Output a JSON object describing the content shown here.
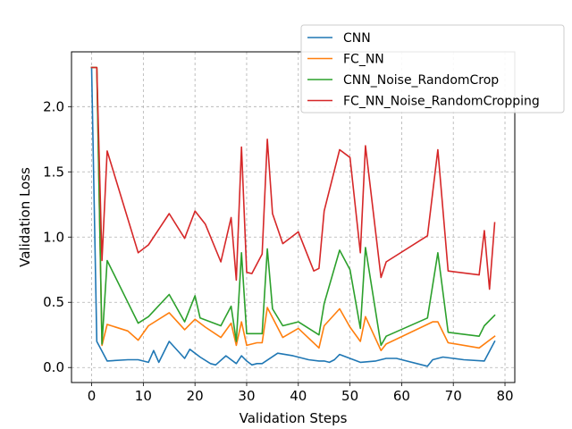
{
  "chart_data": {
    "type": "line",
    "title": "",
    "xlabel": "Validation Steps",
    "ylabel": "Validation Loss",
    "xlim": [
      -3.9,
      81.9
    ],
    "ylim": [
      -0.115,
      2.42
    ],
    "xticks": [
      0,
      10,
      20,
      30,
      40,
      50,
      60,
      70,
      80
    ],
    "yticks": [
      0.0,
      0.5,
      1.0,
      1.5,
      2.0
    ],
    "xtick_labels": [
      "0",
      "10",
      "20",
      "30",
      "40",
      "50",
      "60",
      "70",
      "80"
    ],
    "ytick_labels": [
      "0.0",
      "0.5",
      "1.0",
      "1.5",
      "2.0"
    ],
    "grid": true,
    "grid_style": "dashed",
    "legend_position": "upper-right, outside",
    "series": [
      {
        "name": "CNN",
        "color": "#1f77b4",
        "x": [
          0,
          1,
          3,
          7,
          9,
          11,
          12,
          13,
          15,
          18,
          19,
          21,
          23,
          24,
          26,
          27,
          28,
          29,
          30,
          31,
          32,
          33,
          36,
          39,
          42,
          44,
          45,
          46,
          47,
          48,
          50,
          52,
          55,
          57,
          59,
          65,
          66,
          68,
          70,
          72,
          76,
          78
        ],
        "y": [
          2.3,
          0.2,
          0.05,
          0.06,
          0.06,
          0.04,
          0.13,
          0.04,
          0.2,
          0.07,
          0.14,
          0.08,
          0.03,
          0.02,
          0.09,
          0.06,
          0.03,
          0.09,
          0.05,
          0.02,
          0.03,
          0.03,
          0.11,
          0.09,
          0.06,
          0.05,
          0.05,
          0.04,
          0.06,
          0.1,
          0.07,
          0.04,
          0.05,
          0.07,
          0.07,
          0.01,
          0.06,
          0.08,
          0.07,
          0.06,
          0.05,
          0.2
        ]
      },
      {
        "name": "FC_NN",
        "color": "#ff7f0e",
        "x": [
          0,
          1,
          2,
          3,
          7,
          9,
          11,
          15,
          18,
          20,
          22,
          25,
          27,
          28,
          29,
          30,
          32,
          33,
          34,
          37,
          40,
          44,
          45,
          48,
          50,
          52,
          53,
          56,
          57,
          66,
          67,
          69,
          75,
          78
        ],
        "y": [
          2.3,
          2.3,
          0.17,
          0.33,
          0.28,
          0.21,
          0.32,
          0.42,
          0.29,
          0.37,
          0.31,
          0.23,
          0.34,
          0.17,
          0.35,
          0.17,
          0.19,
          0.19,
          0.46,
          0.23,
          0.3,
          0.15,
          0.32,
          0.45,
          0.31,
          0.2,
          0.39,
          0.13,
          0.18,
          0.35,
          0.35,
          0.19,
          0.15,
          0.24
        ]
      },
      {
        "name": "CNN_Noise_RandomCrop",
        "color": "#2ca02c",
        "x": [
          0,
          1,
          2,
          3,
          7,
          9,
          11,
          15,
          18,
          20,
          21,
          25,
          27,
          28,
          29,
          30,
          33,
          34,
          35,
          37,
          40,
          44,
          45,
          48,
          50,
          52,
          53,
          56,
          57,
          65,
          67,
          69,
          75,
          76,
          78
        ],
        "y": [
          2.3,
          2.3,
          0.18,
          0.82,
          0.5,
          0.34,
          0.39,
          0.56,
          0.35,
          0.55,
          0.38,
          0.32,
          0.47,
          0.2,
          0.88,
          0.26,
          0.26,
          0.91,
          0.45,
          0.32,
          0.35,
          0.25,
          0.49,
          0.9,
          0.75,
          0.3,
          0.92,
          0.17,
          0.24,
          0.38,
          0.88,
          0.27,
          0.24,
          0.32,
          0.4
        ]
      },
      {
        "name": "FC_NN_Noise_RandomCropping",
        "color": "#d62728",
        "x": [
          0,
          1,
          2,
          3,
          9,
          11,
          15,
          18,
          20,
          22,
          25,
          27,
          28,
          29,
          30,
          31,
          33,
          34,
          35,
          37,
          40,
          43,
          44,
          45,
          48,
          50,
          52,
          53,
          56,
          57,
          65,
          67,
          69,
          75,
          76,
          77,
          78
        ],
        "y": [
          2.3,
          2.3,
          0.82,
          1.66,
          0.88,
          0.94,
          1.18,
          0.99,
          1.2,
          1.1,
          0.81,
          1.15,
          0.67,
          1.69,
          0.73,
          0.72,
          0.87,
          1.75,
          1.18,
          0.95,
          1.04,
          0.74,
          0.76,
          1.2,
          1.67,
          1.61,
          0.88,
          1.7,
          0.69,
          0.81,
          1.01,
          1.67,
          0.74,
          0.71,
          1.05,
          0.6,
          1.11
        ]
      }
    ]
  }
}
